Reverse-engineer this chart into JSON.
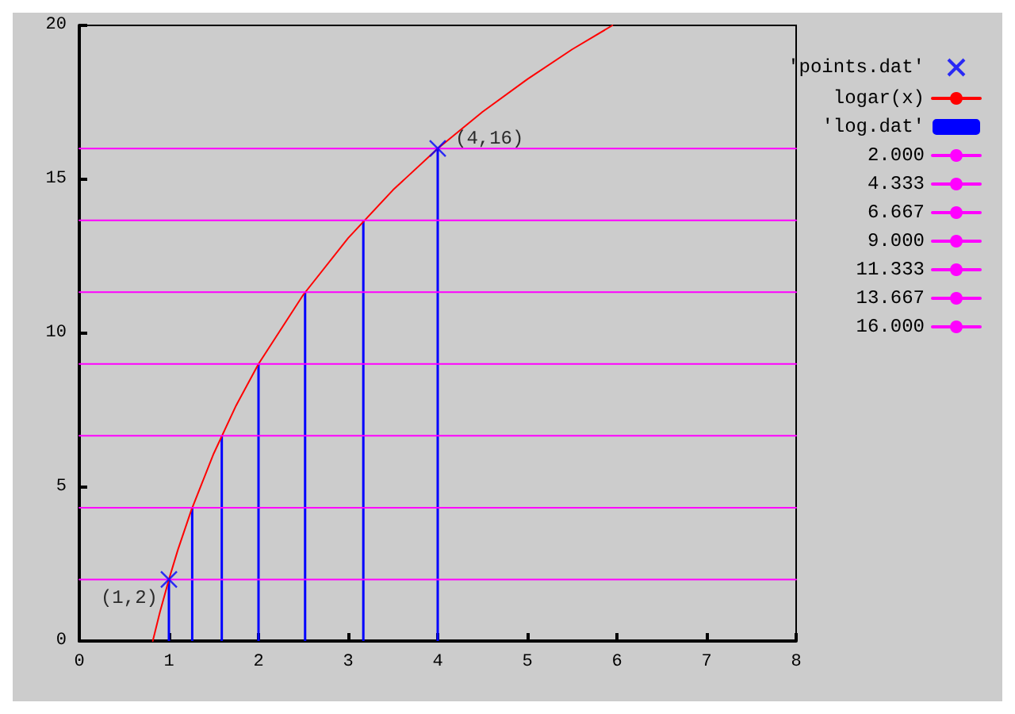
{
  "chart_data": {
    "type": "line",
    "series": [
      {
        "name": "'points.dat'",
        "type": "scatter",
        "marker": "cross",
        "color": "#0000ff",
        "x": [
          1,
          4
        ],
        "values": [
          2,
          16
        ]
      },
      {
        "name": "logar(x)",
        "color": "#ff0000",
        "x": [
          0.82,
          0.9,
          1,
          1.1,
          1.25,
          1.5,
          1.75,
          2,
          2.5,
          3,
          3.5,
          4,
          4.5,
          5,
          5.5,
          5.95
        ],
        "values": [
          0,
          0.94,
          2,
          2.96,
          4.25,
          6.09,
          7.65,
          9,
          11.25,
          13.09,
          14.65,
          16,
          17.19,
          18.25,
          19.22,
          20
        ]
      },
      {
        "name": "'log.dat'",
        "type": "bar",
        "color": "#0000ff",
        "x": [
          1,
          1.26,
          1.59,
          2,
          2.52,
          3.17,
          4
        ],
        "values": [
          2,
          4.333,
          6.667,
          9,
          11.333,
          13.667,
          16
        ]
      },
      {
        "name": "2.000",
        "color": "#ff00ff",
        "x": [
          0,
          8
        ],
        "values": [
          2,
          2
        ]
      },
      {
        "name": "4.333",
        "color": "#ff00ff",
        "x": [
          0,
          8
        ],
        "values": [
          4.333,
          4.333
        ]
      },
      {
        "name": "6.667",
        "color": "#ff00ff",
        "x": [
          0,
          8
        ],
        "values": [
          6.667,
          6.667
        ]
      },
      {
        "name": "9.000",
        "color": "#ff00ff",
        "x": [
          0,
          8
        ],
        "values": [
          9,
          9
        ]
      },
      {
        "name": "11.333",
        "color": "#ff00ff",
        "x": [
          0,
          8
        ],
        "values": [
          11.333,
          11.333
        ]
      },
      {
        "name": "13.667",
        "color": "#ff00ff",
        "x": [
          0,
          8
        ],
        "values": [
          13.667,
          13.667
        ]
      },
      {
        "name": "16.000",
        "color": "#ff00ff",
        "x": [
          0,
          8
        ],
        "values": [
          16,
          16
        ]
      }
    ],
    "annotations": [
      {
        "text": "(1,2)",
        "x": 1,
        "y": 2
      },
      {
        "text": "(4,16)",
        "x": 4,
        "y": 16
      }
    ],
    "xlim": [
      0,
      8
    ],
    "xticks": [
      0,
      1,
      2,
      3,
      4,
      5,
      6,
      7,
      8
    ],
    "ylim": [
      0,
      20
    ],
    "yticks": [
      0,
      5,
      10,
      15,
      20
    ],
    "grid": false,
    "legend": "right",
    "marker": "none",
    "line_style": "solid"
  }
}
